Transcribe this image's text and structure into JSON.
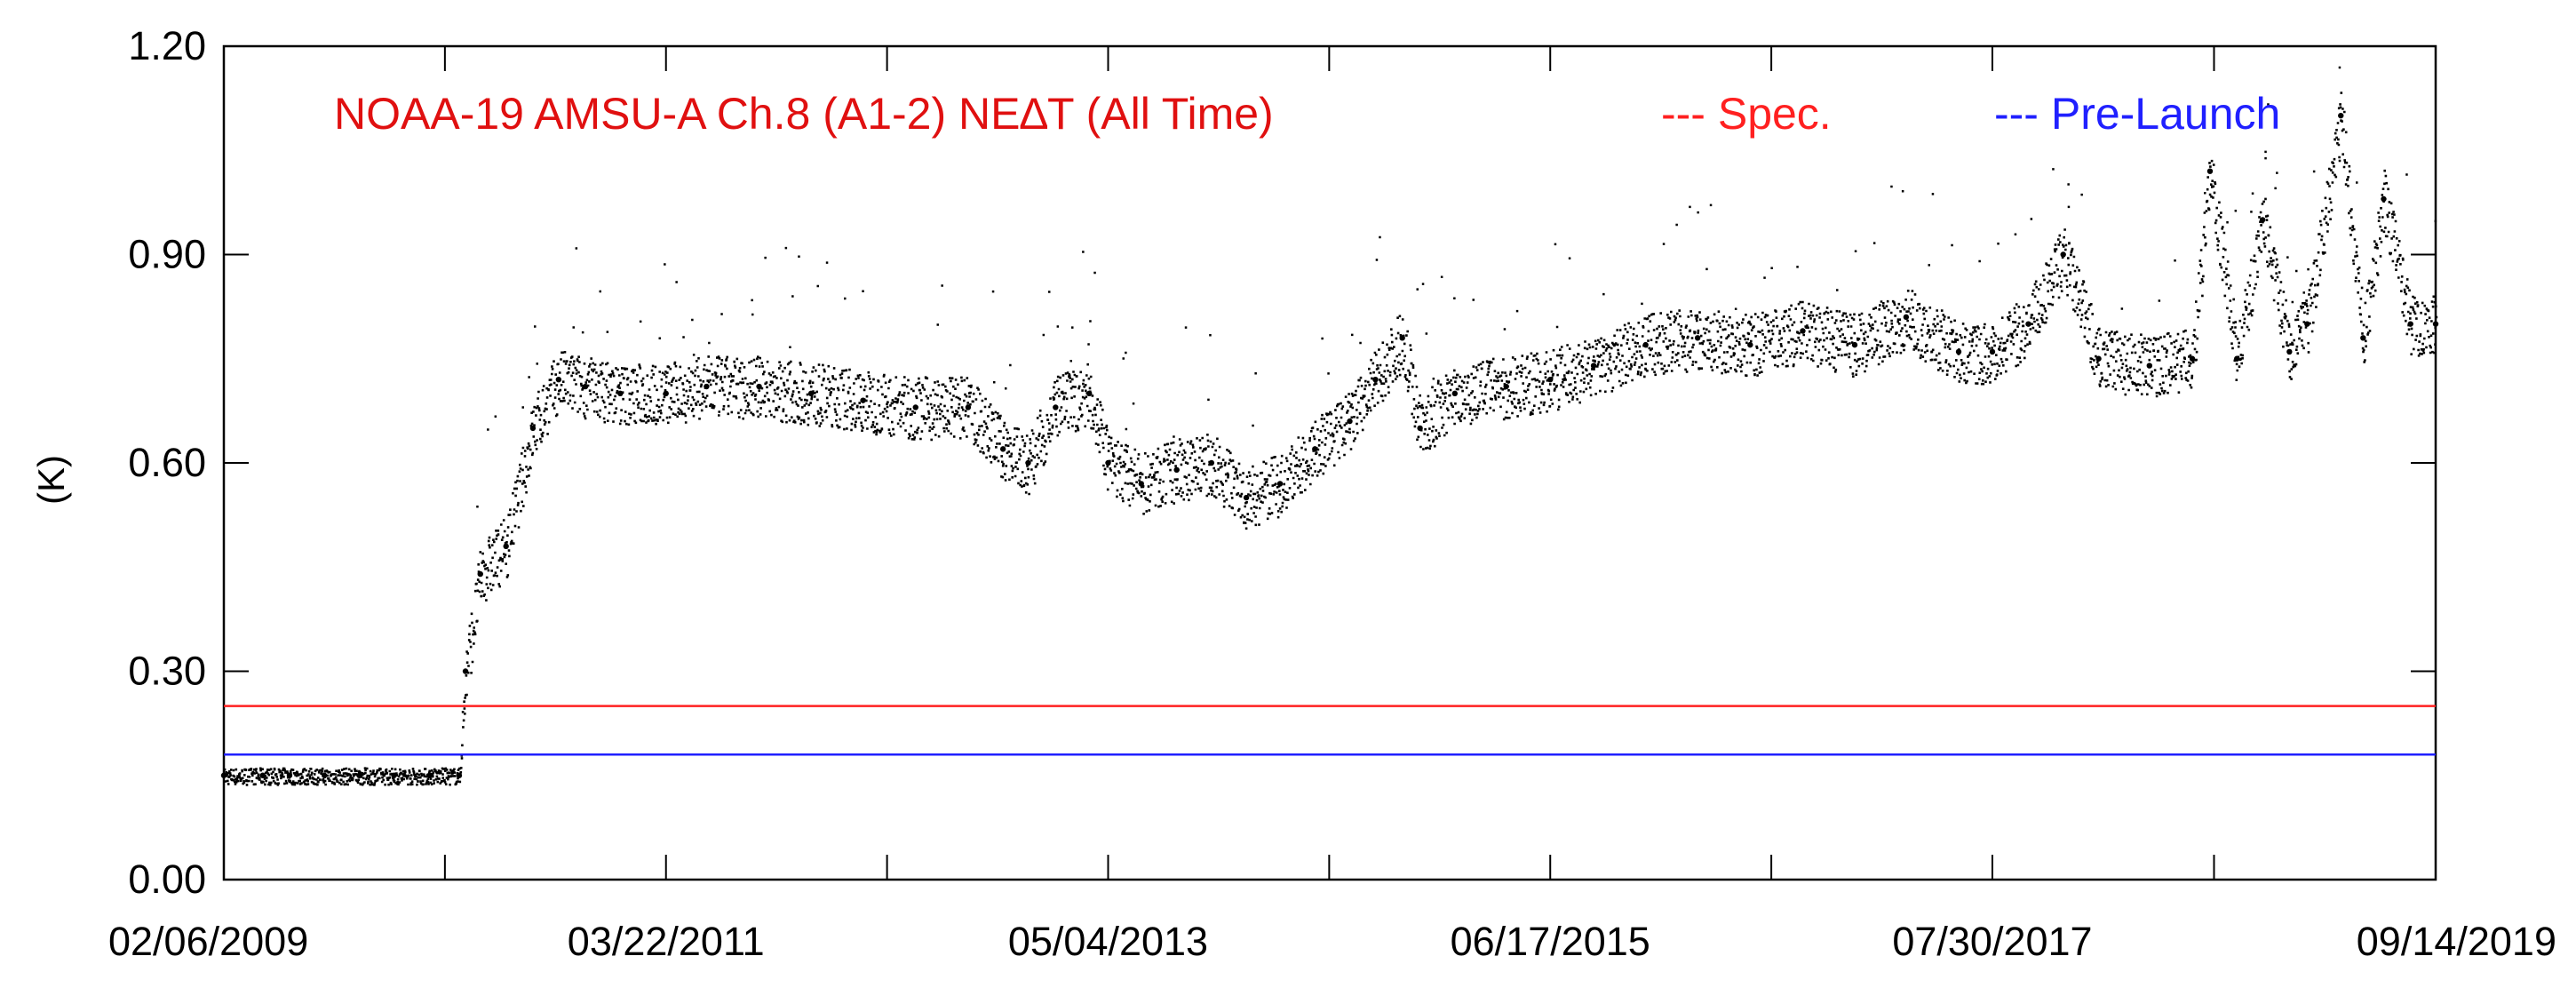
{
  "chart_data": {
    "type": "scatter",
    "title": "NOAA-19 AMSU-A Ch.8 (A1-2) NE∆T  (All Time)",
    "ylabel": "(K)",
    "xlabel": "",
    "xlim": [
      "2009-02-06",
      "2019-09-14"
    ],
    "ylim": [
      0.0,
      1.2
    ],
    "y_ticks": [
      0.0,
      0.3,
      0.6,
      0.9,
      1.2
    ],
    "y_tick_labels": [
      "0.00",
      "0.30",
      "0.60",
      "0.90",
      "1.20"
    ],
    "x_tick_labels": [
      "02/06/2009",
      "03/22/2011",
      "05/04/2013",
      "06/17/2015",
      "07/30/2017",
      "09/14/2019"
    ],
    "x_ticks": [
      "2009-02-06",
      "2011-03-22",
      "2013-05-04",
      "2015-06-17",
      "2017-07-30",
      "2019-09-14"
    ],
    "grid": false,
    "legend_position": "top-right",
    "colors": {
      "points": "#000000",
      "spec": "#ff2020",
      "prelaunch": "#2020ff",
      "title": "#e01010"
    },
    "reference_lines": [
      {
        "name": "Spec.",
        "label": "--- Spec.",
        "value": 0.25,
        "color": "#ff2020"
      },
      {
        "name": "Pre-Launch",
        "label": "--- Pre-Launch",
        "value": 0.18,
        "color": "#2020ff"
      }
    ],
    "series": [
      {
        "style": "points",
        "x": [
          "2009-02-06",
          "2009-04-15",
          "2009-06-01",
          "2009-08-01",
          "2009-10-01",
          "2009-12-01",
          "2010-02-01",
          "2010-03-25",
          "2010-04-05",
          "2010-05-01",
          "2010-06-15",
          "2010-08-01",
          "2010-09-15",
          "2010-11-01",
          "2011-01-01",
          "2011-03-22",
          "2011-06-01",
          "2011-09-01",
          "2011-12-01",
          "2012-03-01",
          "2012-06-01",
          "2012-09-01",
          "2012-11-01",
          "2012-12-15",
          "2013-02-01",
          "2013-04-01",
          "2013-05-04",
          "2013-07-01",
          "2013-09-01",
          "2013-11-01",
          "2014-01-01",
          "2014-03-01",
          "2014-05-01",
          "2014-07-01",
          "2014-08-15",
          "2014-10-01",
          "2014-11-01",
          "2015-01-01",
          "2015-04-01",
          "2015-06-17",
          "2015-09-01",
          "2015-12-01",
          "2016-03-01",
          "2016-06-01",
          "2016-09-01",
          "2016-12-01",
          "2017-03-01",
          "2017-06-01",
          "2017-07-30",
          "2017-10-01",
          "2017-12-01",
          "2018-02-01",
          "2018-05-01",
          "2018-07-15",
          "2018-08-15",
          "2018-10-01",
          "2018-11-15",
          "2019-01-01",
          "2019-02-01",
          "2019-04-01",
          "2019-05-10",
          "2019-06-15",
          "2019-08-01",
          "2019-09-14"
        ],
        "y": [
          0.15,
          0.15,
          0.15,
          0.15,
          0.15,
          0.15,
          0.15,
          0.15,
          0.3,
          0.44,
          0.48,
          0.65,
          0.72,
          0.71,
          0.7,
          0.7,
          0.71,
          0.71,
          0.7,
          0.69,
          0.68,
          0.68,
          0.62,
          0.6,
          0.68,
          0.7,
          0.6,
          0.57,
          0.59,
          0.6,
          0.55,
          0.57,
          0.62,
          0.66,
          0.72,
          0.78,
          0.65,
          0.7,
          0.71,
          0.72,
          0.74,
          0.77,
          0.78,
          0.77,
          0.79,
          0.77,
          0.81,
          0.76,
          0.76,
          0.8,
          0.9,
          0.75,
          0.74,
          0.75,
          1.02,
          0.75,
          0.95,
          0.76,
          0.8,
          1.1,
          0.78,
          0.98,
          0.8,
          0.8
        ]
      }
    ]
  }
}
